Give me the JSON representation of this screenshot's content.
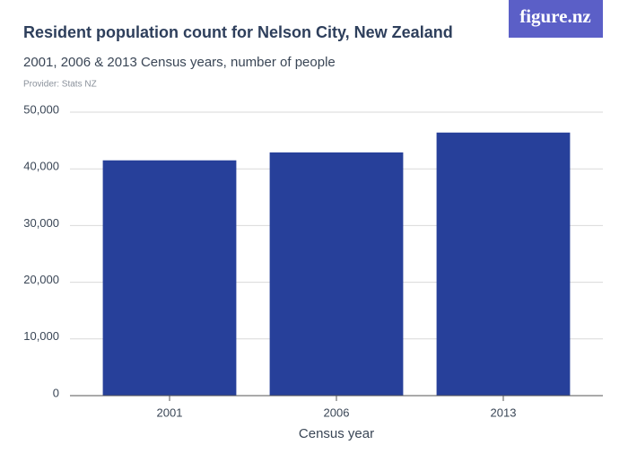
{
  "logo": "figure.nz",
  "chart_data": {
    "type": "bar",
    "title": "Resident population count for Nelson City, New Zealand",
    "subtitle": "2001, 2006 & 2013 Census years, number of people",
    "source": "Provider: Stats NZ",
    "x_label": "Census year",
    "categories": [
      "2001",
      "2006",
      "2013"
    ],
    "values": [
      41500,
      42900,
      46400
    ],
    "color": "#27409a",
    "ylim": [
      0,
      50000
    ],
    "yticks": [
      0,
      {
        "value": 10000,
        "label": "10,000"
      },
      {
        "value": 20000,
        "label": "20,000"
      },
      {
        "value": 30000,
        "label": "30,000"
      },
      {
        "value": 40000,
        "label": "40,000"
      },
      {
        "value": 50000,
        "label": "50,000"
      }
    ],
    "grid": true
  }
}
